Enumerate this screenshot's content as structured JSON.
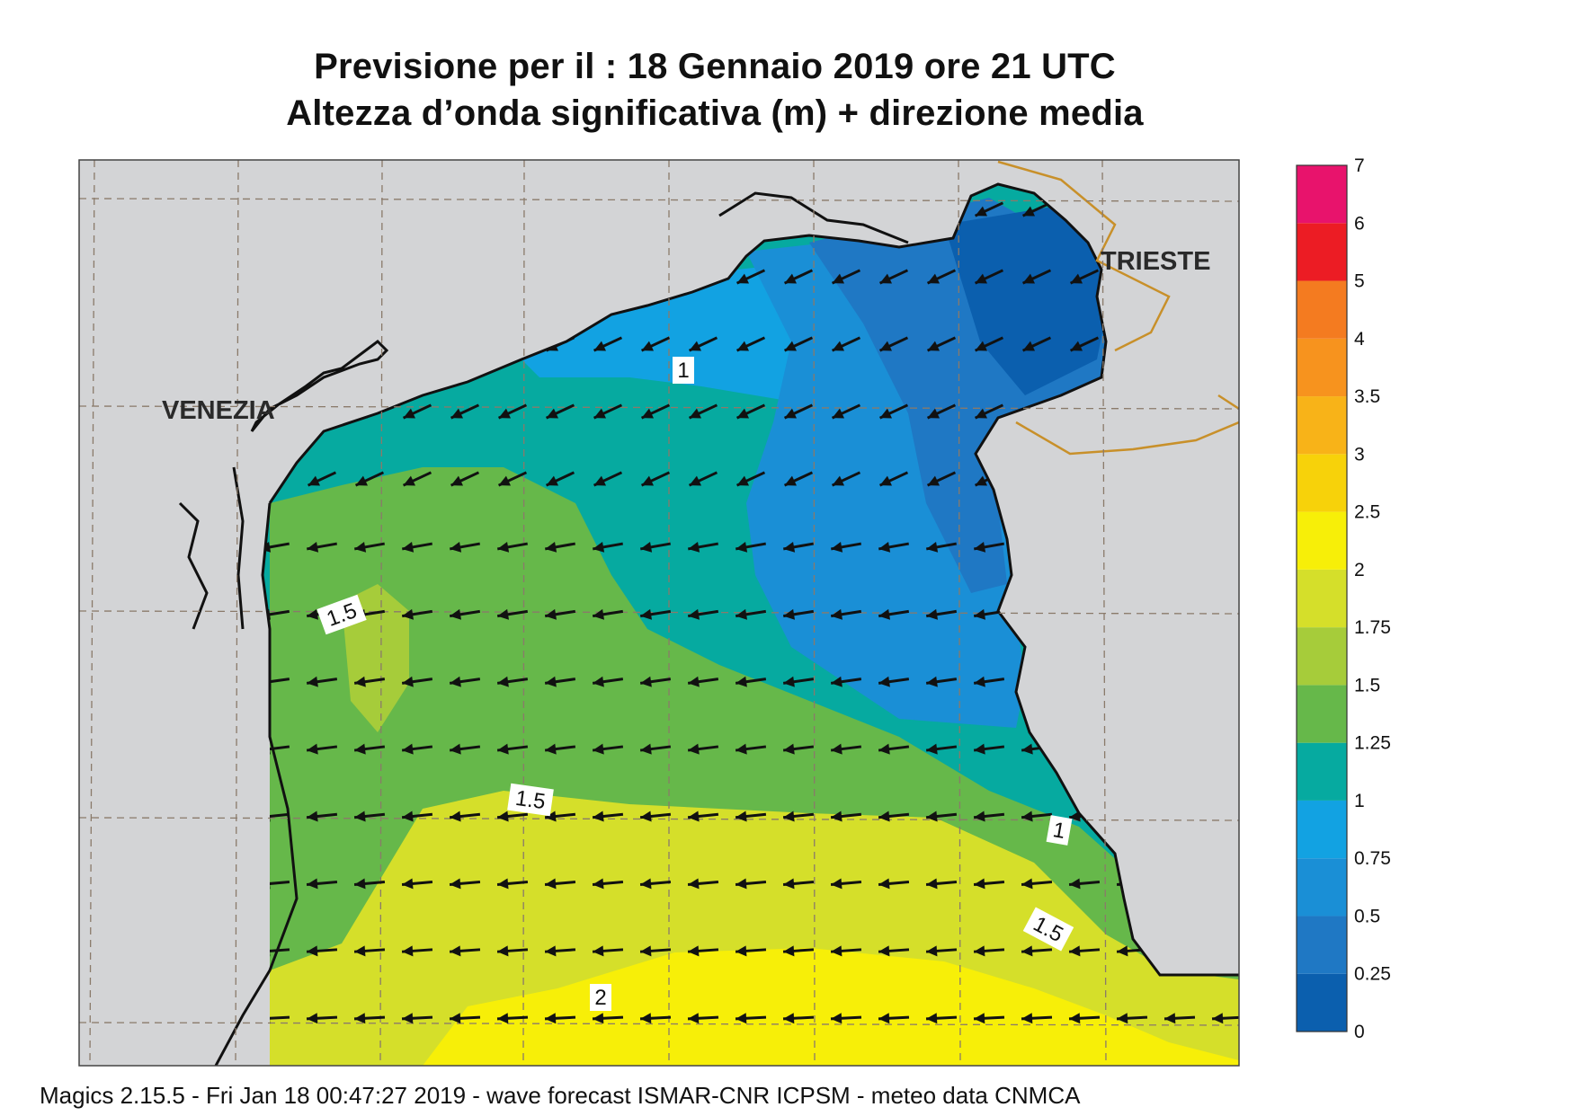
{
  "title": {
    "line1": "Previsione per il  :  18  Gennaio  2019   ore 21 UTC",
    "line2": "Altezza d’onda significativa (m) + direzione media"
  },
  "cities": {
    "venezia": "VENEZIA",
    "trieste": "TRIESTE"
  },
  "contour_labels": [
    "1",
    "1.5",
    "1.5",
    "1",
    "1.5",
    "2"
  ],
  "colorbar": {
    "levels": [
      "0",
      "0.25",
      "0.5",
      "0.75",
      "1",
      "1.25",
      "1.5",
      "1.75",
      "2",
      "2.5",
      "3",
      "3.5",
      "4",
      "5",
      "6",
      "7"
    ],
    "colors": [
      "#0b5fae",
      "#1f78c4",
      "#1a8fd6",
      "#12a2e2",
      "#06aaa0",
      "#66b84a",
      "#a6cc3a",
      "#d5df2a",
      "#f7ef08",
      "#f7d20a",
      "#f8b318",
      "#f7931e",
      "#f47b20",
      "#ec1c24",
      "#e8136c"
    ]
  },
  "colors": {
    "land": "#d3d4d6",
    "coast": "#111111",
    "border": "#c8902a",
    "grid": "#8a7a6a"
  },
  "footer": "Magics 2.15.5 - Fri Jan 18 00:47:27 2019 - wave forecast  ISMAR-CNR  ICPSM - meteo data   CNMCA"
}
